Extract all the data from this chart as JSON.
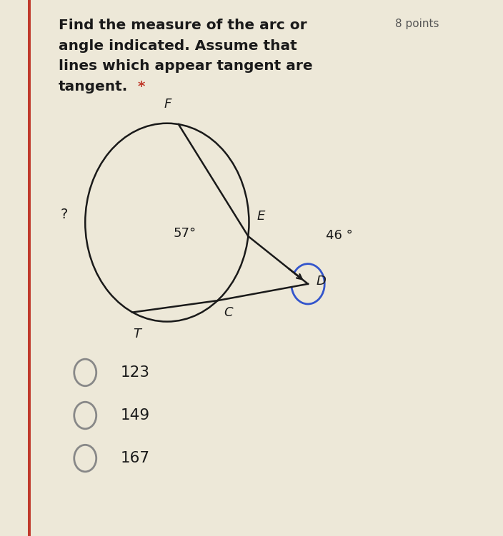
{
  "title_line1": "Find the measure of the arc or",
  "title_line2": "angle indicated. Assume that",
  "title_line3": "lines which appear tangent are",
  "title_line4": "tangent.",
  "points_label": "8 points",
  "bg_color": "#ede8d8",
  "inner_bg": "#ffffff",
  "label_F": "F",
  "label_E": "E",
  "label_T": "T",
  "label_C": "C",
  "label_D": "D",
  "label_question": "?",
  "label_57": "57°",
  "label_46": "46 °",
  "choices": [
    "123",
    "149",
    "167"
  ],
  "red_border_color": "#c0392b",
  "text_color": "#1a1a1a",
  "gray_circle_color": "#888888",
  "star_color": "#c0392b",
  "blue_arc_color": "#3355cc"
}
